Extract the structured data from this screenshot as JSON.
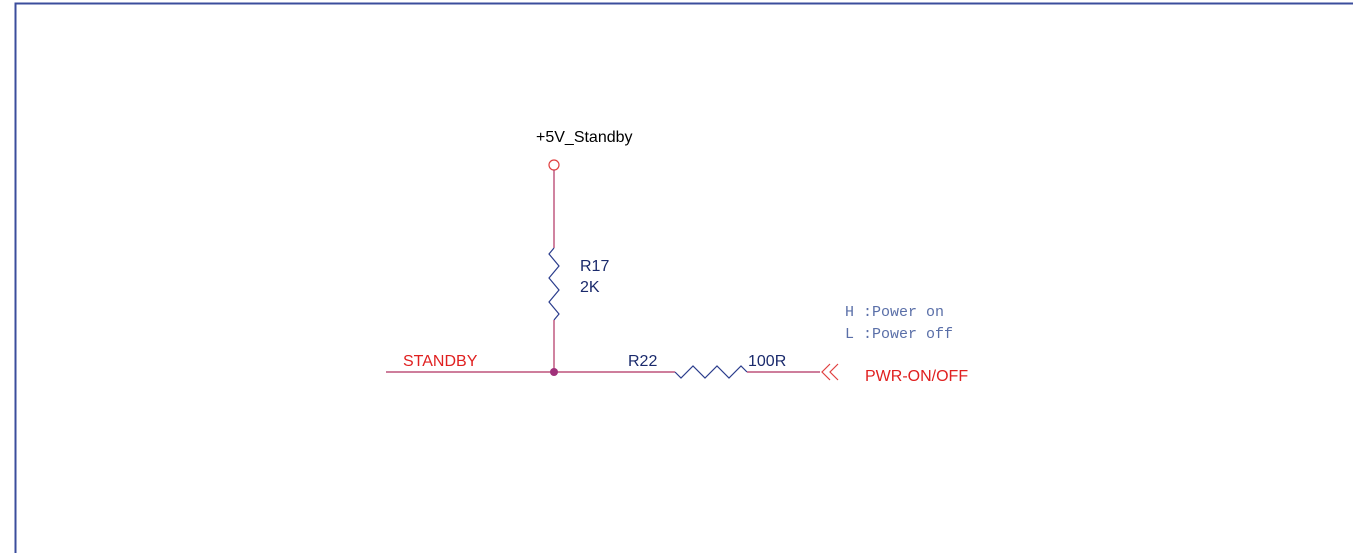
{
  "power_rail": "+5V_Standby",
  "components": [
    {
      "ref": "R17",
      "value": "2K"
    },
    {
      "ref": "R22",
      "value": "100R"
    }
  ],
  "nets": {
    "left": "STANDBY",
    "right": "PWR-ON/OFF"
  },
  "notes": [
    "H :Power on",
    "L :Power off"
  ]
}
